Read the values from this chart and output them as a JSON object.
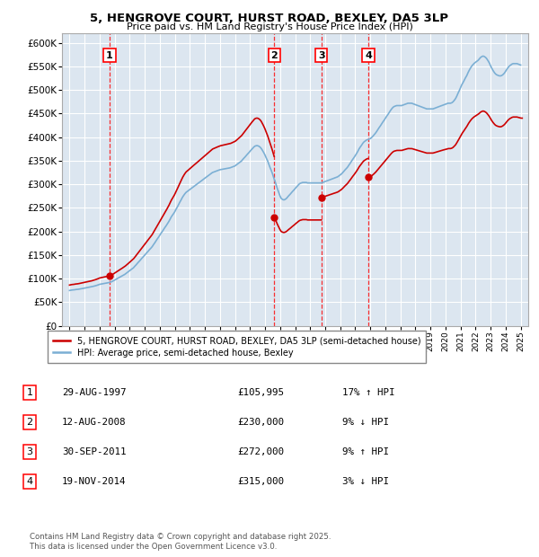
{
  "title": "5, HENGROVE COURT, HURST ROAD, BEXLEY, DA5 3LP",
  "subtitle": "Price paid vs. HM Land Registry's House Price Index (HPI)",
  "legend_label_red": "5, HENGROVE COURT, HURST ROAD, BEXLEY, DA5 3LP (semi-detached house)",
  "legend_label_blue": "HPI: Average price, semi-detached house, Bexley",
  "footer": "Contains HM Land Registry data © Crown copyright and database right 2025.\nThis data is licensed under the Open Government Licence v3.0.",
  "transactions": [
    {
      "num": 1,
      "date": "29-AUG-1997",
      "price": 105995,
      "hpi_rel": "17% ↑ HPI",
      "year": 1997.66
    },
    {
      "num": 2,
      "date": "12-AUG-2008",
      "price": 230000,
      "hpi_rel": "9% ↓ HPI",
      "year": 2008.62
    },
    {
      "num": 3,
      "date": "30-SEP-2011",
      "price": 272000,
      "hpi_rel": "9% ↑ HPI",
      "year": 2011.75
    },
    {
      "num": 4,
      "date": "19-NOV-2014",
      "price": 315000,
      "hpi_rel": "3% ↓ HPI",
      "year": 2014.88
    }
  ],
  "ylim": [
    0,
    620000
  ],
  "yticks": [
    0,
    50000,
    100000,
    150000,
    200000,
    250000,
    300000,
    350000,
    400000,
    450000,
    500000,
    550000,
    600000
  ],
  "xlim_start": 1994.5,
  "xlim_end": 2025.5,
  "plot_bg_color": "#dce6f0",
  "red_color": "#cc0000",
  "blue_color": "#7bafd4",
  "grid_color": "#ffffff"
}
